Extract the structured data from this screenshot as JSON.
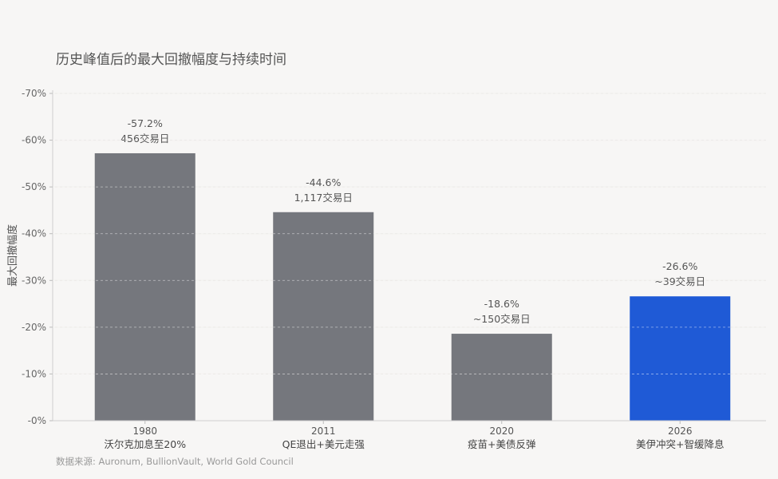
{
  "source_note": "数据来源: Auronum, BullionVault, World Gold Council",
  "chart_data": {
    "type": "bar",
    "title": "历史峰值后的最大回撤幅度与持续时间",
    "ylabel": "最大回撤幅度",
    "xlabel": "",
    "ylim": [
      0,
      -70
    ],
    "y_ticks": [
      -70,
      -60,
      -50,
      -40,
      -30,
      -20,
      -10,
      0
    ],
    "y_tick_labels": [
      "-70%",
      "-60%",
      "-50%",
      "-40%",
      "-30%",
      "-20%",
      "-10%",
      "-0%"
    ],
    "grid": true,
    "categories": [
      {
        "year": "1980",
        "event": "沃尔克加息至20%"
      },
      {
        "year": "2011",
        "event": "QE退出+美元走强"
      },
      {
        "year": "2020",
        "event": "疫苗+美债反弹"
      },
      {
        "year": "2026",
        "event": "美伊冲突+智缓降息"
      }
    ],
    "values": [
      -57.2,
      -44.6,
      -18.6,
      -26.6
    ],
    "value_labels": [
      "-57.2%",
      "-44.6%",
      "-18.6%",
      "-26.6%"
    ],
    "duration_labels": [
      "456交易日",
      "1,117交易日",
      "~150交易日",
      "~39交易日"
    ],
    "colors": [
      "#75777d",
      "#75777d",
      "#75777d",
      "#1f5ad6"
    ]
  }
}
